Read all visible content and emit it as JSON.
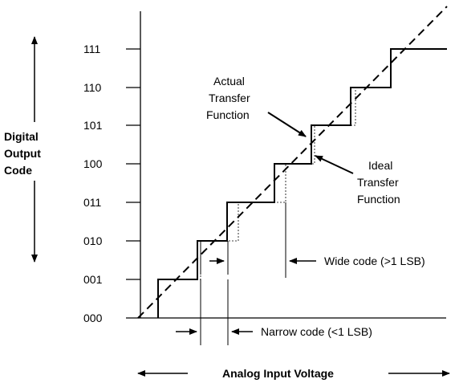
{
  "y_axis": {
    "title_lines": [
      "Digital",
      "Output",
      "Code"
    ],
    "codes": [
      "000",
      "001",
      "010",
      "011",
      "100",
      "101",
      "110",
      "111"
    ]
  },
  "x_axis": {
    "title": "Analog Input Voltage"
  },
  "annotations": {
    "actual_lines": [
      "Actual",
      "Transfer",
      "Function"
    ],
    "ideal_lines": [
      "Ideal",
      "Transfer",
      "Function"
    ],
    "wide_code": "Wide code (>1 LSB)",
    "narrow_code": "Narrow code (<1 LSB)"
  },
  "colors": {
    "line": "#000000",
    "background": "#ffffff"
  }
}
